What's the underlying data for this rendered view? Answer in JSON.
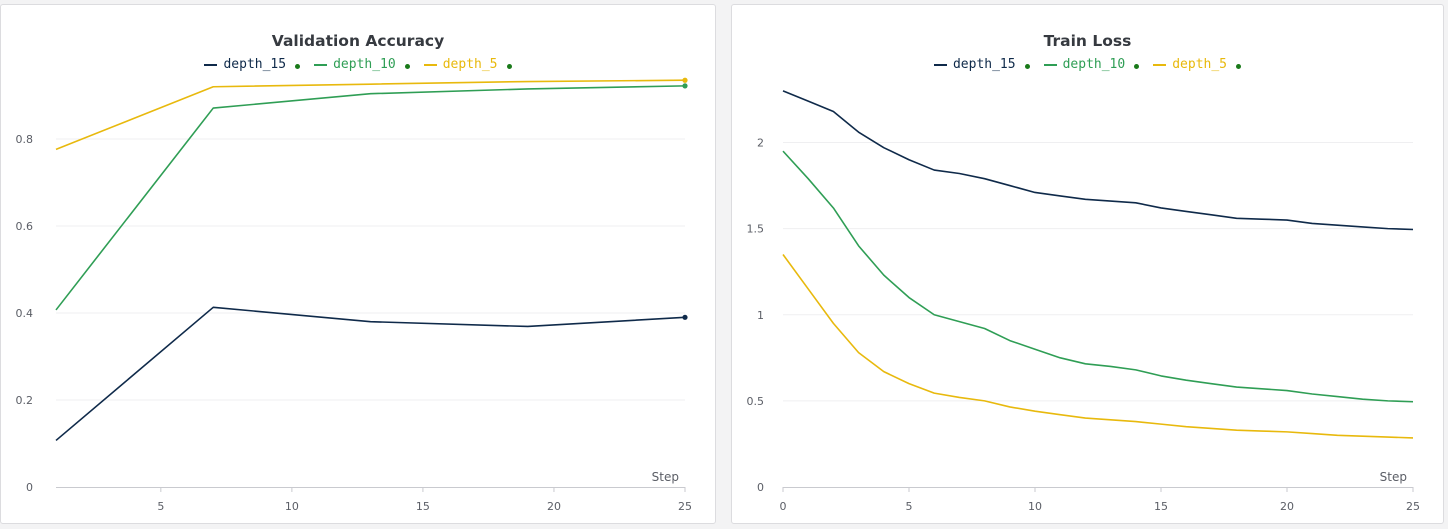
{
  "colors": {
    "depth_15": "#0f2a4a",
    "depth_10": "#2f9e55",
    "depth_5": "#e8b90d",
    "legend_dot": "#1a7a1a"
  },
  "chart_data": [
    {
      "type": "line",
      "title": "Validation Accuracy",
      "xlabel": "Step",
      "ylabel": "",
      "xlim": [
        1,
        25
      ],
      "ylim": [
        0,
        0.97
      ],
      "xticks": [
        5,
        10,
        15,
        20,
        25
      ],
      "yticks": [
        0,
        0.2,
        0.4,
        0.6,
        0.8
      ],
      "ytick_labels": [
        "0",
        "0.2",
        "0.4",
        "0.6",
        "0.8"
      ],
      "grid": "horizontal",
      "legend": "top-center",
      "series": [
        {
          "name": "depth_15",
          "color": "#0f2a4a",
          "end_marker": true,
          "x": [
            1,
            7,
            13,
            19,
            25
          ],
          "y": [
            0.107,
            0.413,
            0.38,
            0.369,
            0.39
          ]
        },
        {
          "name": "depth_10",
          "color": "#2f9e55",
          "end_marker": true,
          "x": [
            1,
            7,
            13,
            19,
            25
          ],
          "y": [
            0.407,
            0.871,
            0.904,
            0.915,
            0.922
          ]
        },
        {
          "name": "depth_5",
          "color": "#e8b90d",
          "end_marker": true,
          "x": [
            1,
            7,
            13,
            19,
            25
          ],
          "y": [
            0.776,
            0.92,
            0.926,
            0.932,
            0.935
          ]
        }
      ]
    },
    {
      "type": "line",
      "title": "Train Loss",
      "xlabel": "Step",
      "ylabel": "",
      "xlim": [
        0,
        25
      ],
      "ylim": [
        0,
        2.45
      ],
      "xticks": [
        0,
        5,
        10,
        15,
        20,
        25
      ],
      "yticks": [
        0,
        0.5,
        1,
        1.5,
        2
      ],
      "ytick_labels": [
        "0",
        "0.5",
        "1",
        "1.5",
        "2"
      ],
      "grid": "horizontal",
      "legend": "top-center",
      "series": [
        {
          "name": "depth_15",
          "color": "#0f2a4a",
          "end_marker": false,
          "x": [
            0,
            1,
            2,
            3,
            4,
            5,
            6,
            7,
            8,
            9,
            10,
            11,
            12,
            13,
            14,
            15,
            16,
            17,
            18,
            19,
            20,
            21,
            22,
            23,
            24,
            25
          ],
          "y": [
            2.3,
            2.24,
            2.18,
            2.06,
            1.97,
            1.9,
            1.84,
            1.82,
            1.79,
            1.75,
            1.71,
            1.69,
            1.67,
            1.66,
            1.65,
            1.62,
            1.6,
            1.58,
            1.56,
            1.555,
            1.55,
            1.53,
            1.52,
            1.51,
            1.5,
            1.495
          ]
        },
        {
          "name": "depth_10",
          "color": "#2f9e55",
          "end_marker": false,
          "x": [
            0,
            1,
            2,
            3,
            4,
            5,
            6,
            7,
            8,
            9,
            10,
            11,
            12,
            13,
            14,
            15,
            16,
            17,
            18,
            19,
            20,
            21,
            22,
            23,
            24,
            25
          ],
          "y": [
            1.95,
            1.79,
            1.62,
            1.4,
            1.23,
            1.1,
            1.0,
            0.96,
            0.92,
            0.85,
            0.8,
            0.75,
            0.715,
            0.7,
            0.68,
            0.645,
            0.62,
            0.6,
            0.58,
            0.57,
            0.56,
            0.54,
            0.525,
            0.51,
            0.5,
            0.495
          ]
        },
        {
          "name": "depth_5",
          "color": "#e8b90d",
          "end_marker": false,
          "x": [
            0,
            1,
            2,
            3,
            4,
            5,
            6,
            7,
            8,
            9,
            10,
            11,
            12,
            13,
            14,
            15,
            16,
            17,
            18,
            19,
            20,
            21,
            22,
            23,
            24,
            25
          ],
          "y": [
            1.35,
            1.15,
            0.95,
            0.78,
            0.67,
            0.6,
            0.545,
            0.52,
            0.5,
            0.465,
            0.44,
            0.42,
            0.4,
            0.39,
            0.38,
            0.365,
            0.35,
            0.34,
            0.33,
            0.325,
            0.32,
            0.31,
            0.3,
            0.295,
            0.29,
            0.285
          ]
        }
      ]
    }
  ]
}
